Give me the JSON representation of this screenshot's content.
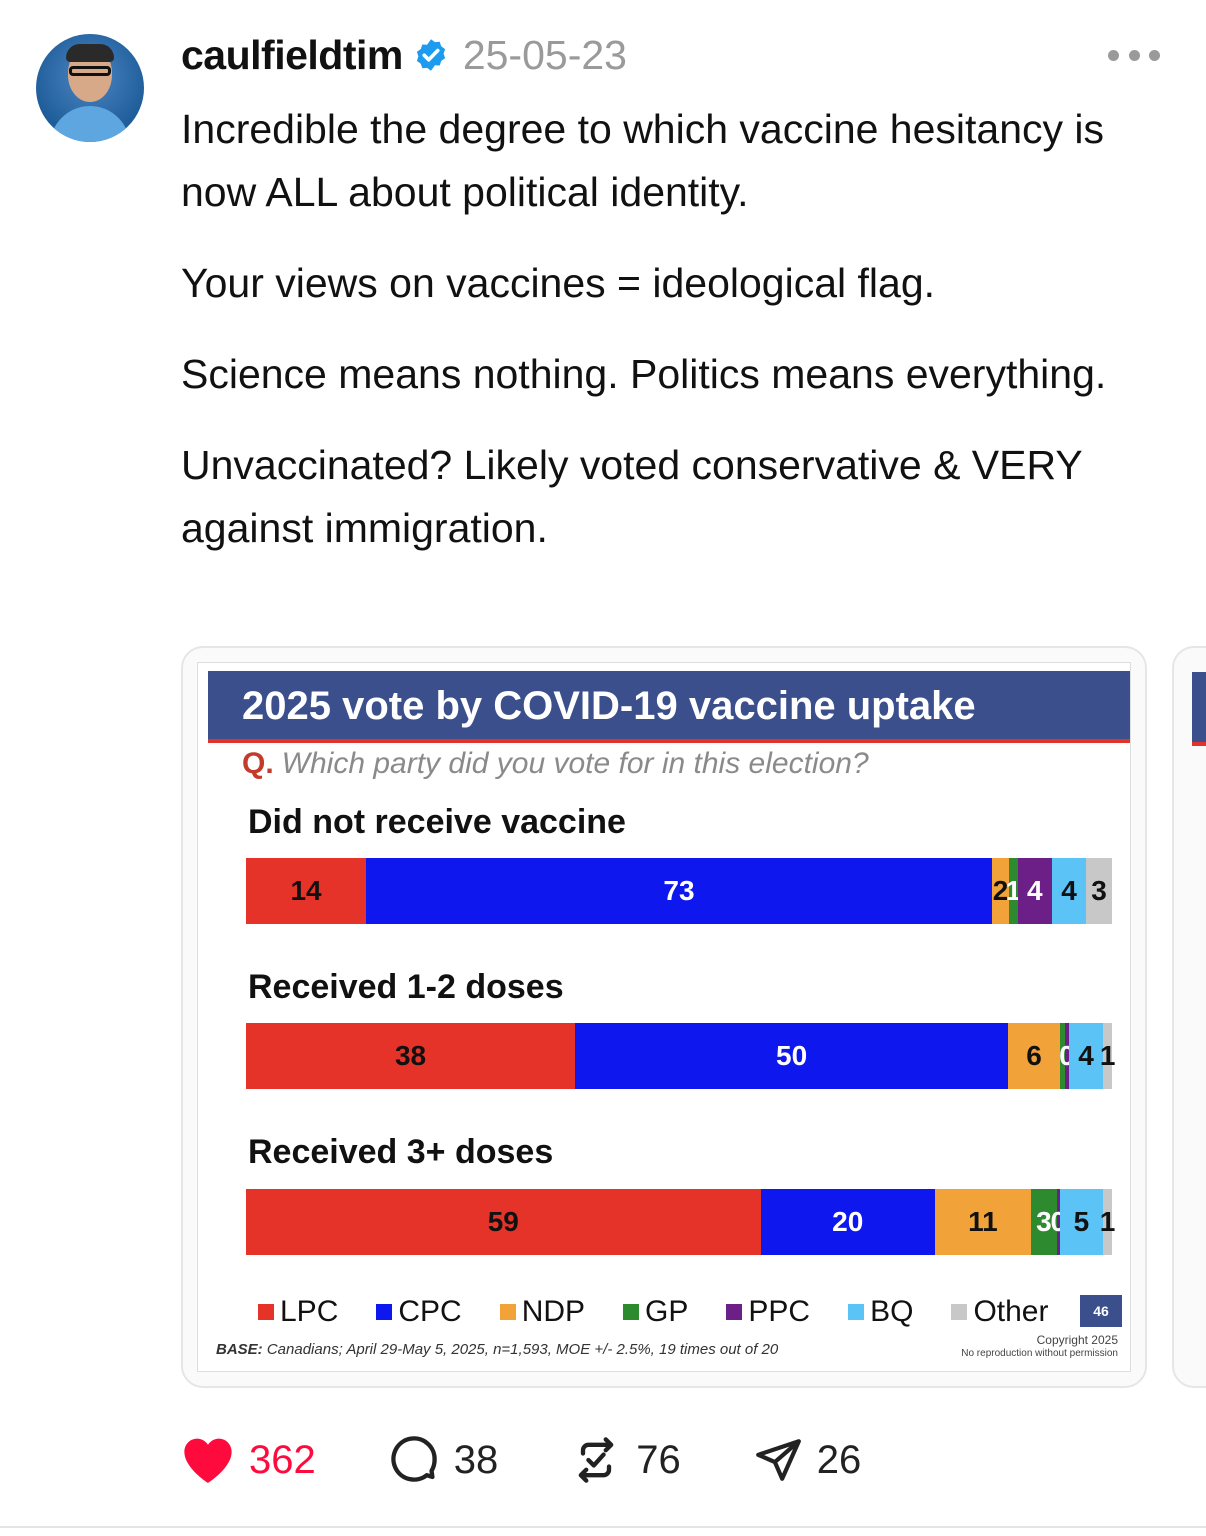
{
  "post": {
    "username": "caulfieldtim",
    "date": "25-05-23",
    "paragraphs": [
      "Incredible the degree to which vaccine hesitancy is now ALL about political identity.",
      "Your views on vaccines = ideological flag.",
      "Science means nothing. Politics means everything.",
      "Unvaccinated? Likely voted conservative & VERY against immigration."
    ]
  },
  "actions": {
    "likes": "362",
    "comments": "38",
    "reposts": "76",
    "shares": "26"
  },
  "chart_data": {
    "type": "bar",
    "stacked": true,
    "orientation": "horizontal",
    "title": "2025 vote by COVID-19 vaccine uptake",
    "question_prefix": "Q.",
    "question": "Which party did you vote for in this election?",
    "categories": [
      "Did not receive vaccine",
      "Received 1-2 doses",
      "Received 3+ doses"
    ],
    "series": [
      {
        "name": "LPC",
        "color": "#e63329",
        "values": [
          14,
          38,
          59
        ],
        "labels": [
          "14",
          "38",
          "59"
        ]
      },
      {
        "name": "CPC",
        "color": "#0e17ee",
        "values": [
          73,
          50,
          20
        ],
        "labels": [
          "73",
          "50",
          "20"
        ]
      },
      {
        "name": "NDP",
        "color": "#f1a33a",
        "values": [
          2,
          6,
          11
        ],
        "labels": [
          "2",
          "6",
          "11"
        ]
      },
      {
        "name": "GP",
        "color": "#2e8a2e",
        "values": [
          1,
          0.6,
          3
        ],
        "labels": [
          "1",
          "",
          "3"
        ]
      },
      {
        "name": "PPC",
        "color": "#6c1f86",
        "values": [
          4,
          0.4,
          0.3
        ],
        "labels": [
          "4",
          "0",
          "0"
        ]
      },
      {
        "name": "BQ",
        "color": "#5bc3f5",
        "values": [
          4,
          4,
          5
        ],
        "labels": [
          "4",
          "4",
          "5"
        ]
      },
      {
        "name": "Other",
        "color": "#c8c8c8",
        "values": [
          3,
          1,
          1
        ],
        "labels": [
          "3",
          "1",
          "1"
        ]
      }
    ],
    "legend_position": "bottom",
    "page_number": "46",
    "base_label": "BASE:",
    "base_text": "Canadians; April 29-May 5, 2025, n=1,593, MOE +/- 2.5%, 19 times out of 20",
    "copyright": "Copyright 2025",
    "copyright_note": "No reproduction without permission"
  }
}
